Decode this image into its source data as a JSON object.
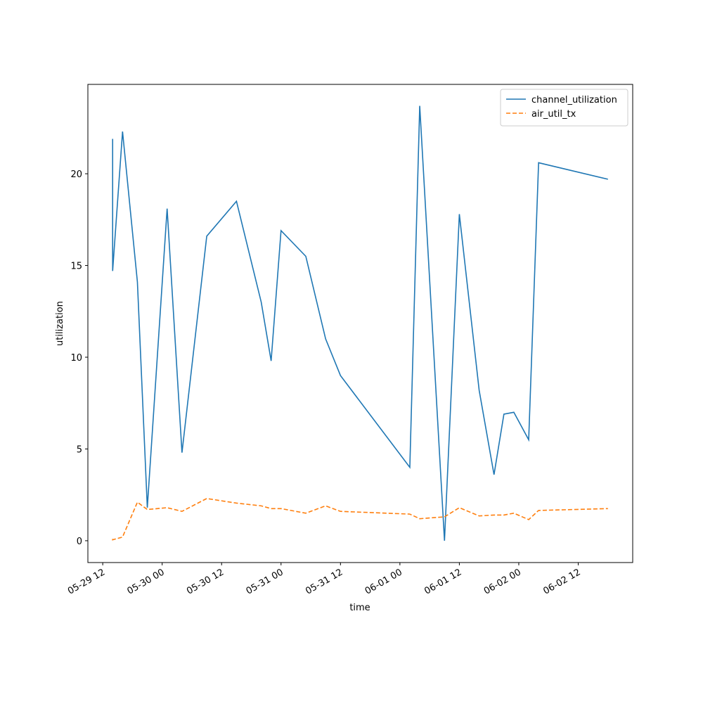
{
  "chart_data": {
    "type": "line",
    "x_label": "time",
    "y_label": "utilization",
    "x": [
      "05-29 14",
      "05-29 14",
      "05-29 14",
      "05-29 16",
      "05-29 19",
      "05-29 21",
      "05-30 01",
      "05-30 04",
      "05-30 09",
      "05-30 15",
      "05-30 20",
      "05-30 22",
      "05-31 00",
      "05-31 05",
      "05-31 09",
      "05-31 12",
      "06-01 02",
      "06-01 04",
      "06-01 09",
      "06-01 12",
      "06-01 16",
      "06-01 19",
      "06-01 21",
      "06-01 23",
      "06-02 02",
      "06-02 04",
      "06-02 18"
    ],
    "series": [
      {
        "name": "channel_utilization",
        "color": "#1f77b4",
        "dash": false,
        "values": [
          21.9,
          15.1,
          14.7,
          22.3,
          14.1,
          1.8,
          18.1,
          4.8,
          16.6,
          18.5,
          13.0,
          9.8,
          16.9,
          15.5,
          11.0,
          9.0,
          4.0,
          23.7,
          0.0,
          17.8,
          8.2,
          3.6,
          6.9,
          7.0,
          5.5,
          20.6,
          19.7
        ]
      },
      {
        "name": "air_util_tx",
        "color": "#ff7f0e",
        "dash": true,
        "values": [
          0.1,
          0.08,
          0.05,
          0.2,
          2.1,
          1.7,
          1.8,
          1.6,
          2.3,
          2.05,
          1.9,
          1.75,
          1.75,
          1.5,
          1.9,
          1.6,
          1.45,
          1.2,
          1.3,
          1.8,
          1.35,
          1.4,
          1.4,
          1.5,
          1.15,
          1.65,
          1.75
        ]
      }
    ],
    "xlim": [
      "05-29 09",
      "06-02 23"
    ],
    "xticks": [
      "05-29 12",
      "05-30 00",
      "05-30 12",
      "05-31 00",
      "05-31 12",
      "06-01 00",
      "06-01 12",
      "06-02 00",
      "06-02 12"
    ],
    "ylim": [
      -1.19,
      24.87
    ],
    "yticks": [
      0,
      5,
      10,
      15,
      20
    ],
    "legend": "upper-right"
  }
}
